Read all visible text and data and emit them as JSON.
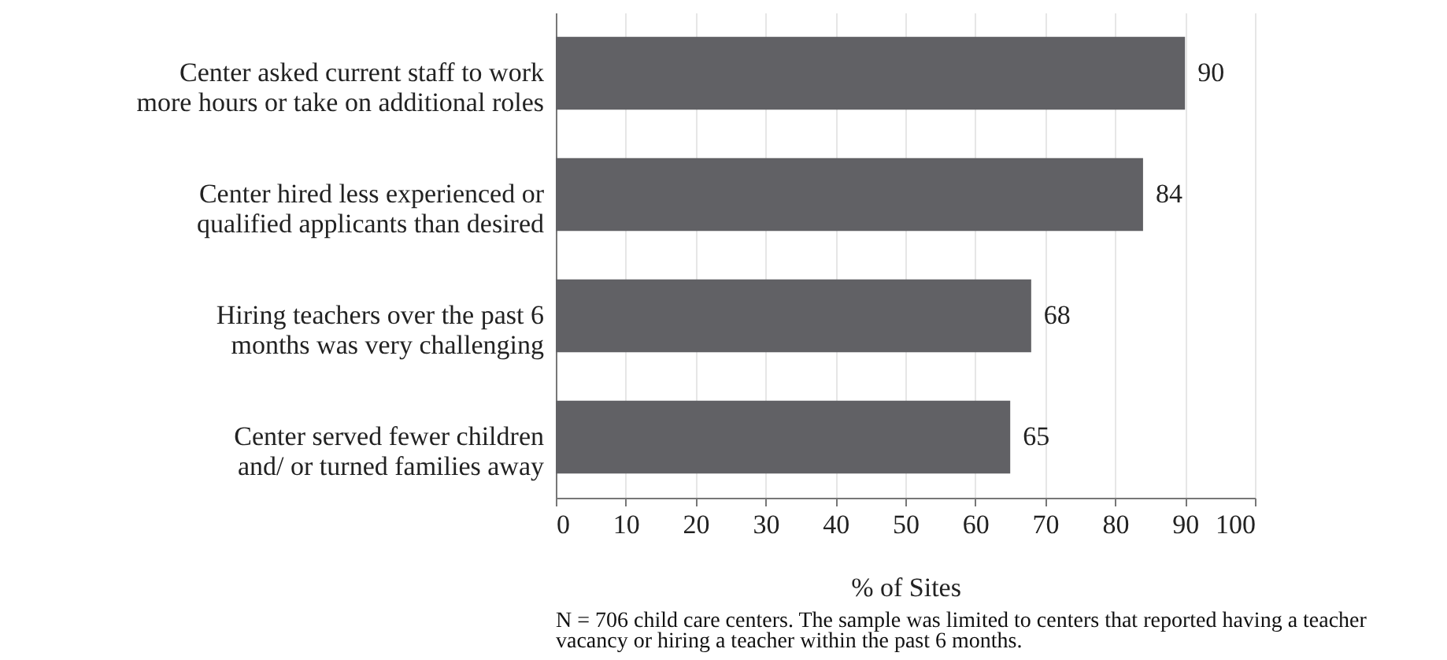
{
  "chart_data": {
    "type": "bar",
    "orientation": "horizontal",
    "categories": [
      "Center asked current staff to work\nmore hours or take on additional roles",
      "Center hired less experienced or\nqualified applicants than desired",
      "Hiring teachers over the past 6\nmonths was very challenging",
      "Center served fewer children\nand/ or turned families away"
    ],
    "values": [
      90,
      84,
      68,
      65
    ],
    "color": "#616165",
    "data_labels": true,
    "xlim": [
      0,
      100
    ],
    "xticks": [
      0,
      10,
      20,
      30,
      40,
      50,
      60,
      70,
      80,
      90,
      100
    ],
    "grid": "x",
    "xlabel": "% of Sites",
    "annotations": [
      "N = 706 child care centers. The sample was limited to centers that reported having a teacher vacancy or hiring a teacher within the past 6 months."
    ]
  }
}
